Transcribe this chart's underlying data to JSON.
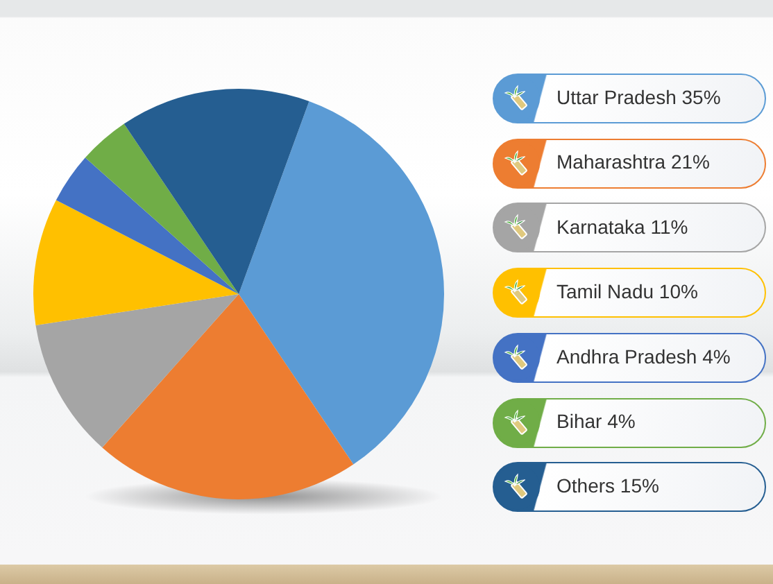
{
  "chart_data": {
    "type": "pie",
    "categories": [
      "Uttar Pradesh 35%",
      "Maharashtra 21%",
      "Karnataka 11%",
      "Tamil Nadu 10%",
      "Andhra Pradesh 4%",
      "Bihar 4%",
      "Others 15%"
    ],
    "values": [
      35,
      21,
      11,
      10,
      4,
      4,
      15
    ],
    "colors": [
      "#5b9bd5",
      "#ed7d31",
      "#a5a5a5",
      "#ffc000",
      "#4472c4",
      "#70ad47",
      "#255e91"
    ],
    "legend": "right"
  }
}
